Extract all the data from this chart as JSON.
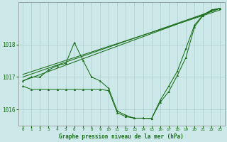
{
  "xlabel": "Graphe pression niveau de la mer (hPa)",
  "background_color": "#cce8e8",
  "grid_color": "#aacccc",
  "line_color": "#1a6e1a",
  "ylim": [
    1015.5,
    1019.3
  ],
  "xlim": [
    -0.5,
    23.5
  ],
  "yticks": [
    1016,
    1017,
    1018
  ],
  "xticks": [
    0,
    1,
    2,
    3,
    4,
    5,
    6,
    7,
    8,
    9,
    10,
    11,
    12,
    13,
    14,
    15,
    16,
    17,
    18,
    19,
    20,
    21,
    22,
    23
  ],
  "flat_x": [
    0,
    1,
    2,
    3,
    4,
    5,
    6,
    7,
    8,
    9,
    10,
    11,
    12,
    13,
    14,
    15,
    16,
    17,
    18,
    19,
    20,
    21,
    22,
    23
  ],
  "flat_y": [
    1016.72,
    1016.62,
    1016.62,
    1016.62,
    1016.62,
    1016.62,
    1016.62,
    1016.62,
    1016.62,
    1016.62,
    1016.58,
    1015.9,
    1015.78,
    1015.73,
    1015.73,
    1015.72,
    1016.22,
    1016.55,
    1017.05,
    1017.6,
    1018.55,
    1018.9,
    1019.07,
    1019.12
  ],
  "wavy_x": [
    0,
    1,
    2,
    3,
    4,
    5,
    6,
    7,
    8,
    9,
    10,
    11,
    12,
    13,
    14,
    15,
    16,
    17,
    18,
    19,
    20,
    21,
    22,
    23
  ],
  "wavy_y": [
    1016.88,
    1017.0,
    1017.0,
    1017.22,
    1017.35,
    1017.42,
    1018.06,
    1017.52,
    1017.0,
    1016.88,
    1016.65,
    1015.95,
    1015.82,
    1015.73,
    1015.73,
    1015.72,
    1016.28,
    1016.72,
    1017.18,
    1017.88,
    1018.6,
    1018.92,
    1019.07,
    1019.12
  ],
  "trend1_x": [
    0,
    23
  ],
  "trend1_y": [
    1016.88,
    1019.12
  ],
  "trend2_x": [
    0,
    23
  ],
  "trend2_y": [
    1017.0,
    1019.12
  ],
  "trend3_x": [
    0,
    23
  ],
  "trend3_y": [
    1017.08,
    1019.07
  ]
}
